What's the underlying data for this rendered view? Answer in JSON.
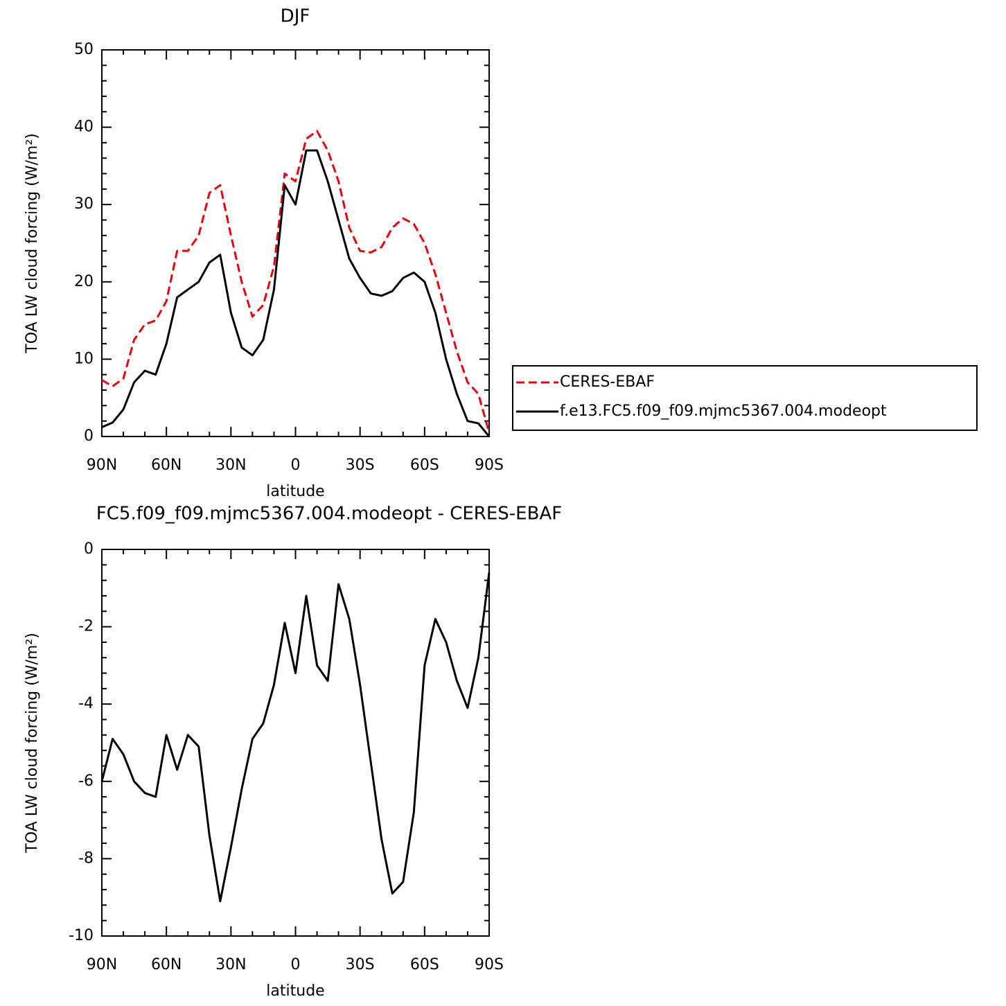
{
  "chart_data": [
    {
      "type": "line",
      "title": "DJF",
      "xlabel": "latitude",
      "ylabel": "TOA LW cloud forcing (W/m²)",
      "x": [
        90,
        85,
        80,
        75,
        70,
        65,
        60,
        55,
        50,
        45,
        40,
        35,
        30,
        25,
        20,
        15,
        10,
        5,
        0,
        -5,
        -10,
        -15,
        -20,
        -25,
        -30,
        -35,
        -40,
        -45,
        -50,
        -55,
        -60,
        -65,
        -70,
        -75,
        -80,
        -85,
        -90
      ],
      "xlim": [
        90,
        -90
      ],
      "xticks": [
        {
          "value": 90,
          "label": "90N"
        },
        {
          "value": 60,
          "label": "60N"
        },
        {
          "value": 30,
          "label": "30N"
        },
        0,
        {
          "value": -30,
          "label": "30S"
        },
        {
          "value": -60,
          "label": "60S"
        },
        {
          "value": -90,
          "label": "90S"
        }
      ],
      "ylim": [
        0,
        50
      ],
      "yticks": [
        0,
        10,
        20,
        30,
        40,
        50
      ],
      "grid": false,
      "legend": "right",
      "series": [
        {
          "name": "CERES-EBAF",
          "color": "#e8000b",
          "line_style": "dashed",
          "values": [
            7.3,
            6.5,
            7.5,
            12.5,
            14.5,
            15,
            17.5,
            24,
            24,
            26,
            31.5,
            32.5,
            26,
            20,
            15.5,
            17,
            22,
            34,
            33,
            38.5,
            39.5,
            37,
            33,
            27,
            24,
            23.8,
            24.5,
            27,
            28.2,
            27.5,
            25,
            21,
            16,
            11,
            7,
            5.5,
            0.5
          ]
        },
        {
          "name": "f.e13.FC5.f09_f09.mjmc5367.004.modeopt",
          "color": "#000000",
          "line_style": "solid",
          "values": [
            1.2,
            1.8,
            3.5,
            7,
            8.5,
            8,
            12,
            18,
            19,
            20,
            22.5,
            23.5,
            16,
            11.5,
            10.5,
            12.5,
            19,
            32.5,
            30,
            37,
            37,
            33,
            28,
            23,
            20.5,
            18.5,
            18.2,
            18.8,
            20.5,
            21.2,
            20,
            16,
            10,
            5.5,
            2,
            1.7,
            0
          ]
        }
      ]
    },
    {
      "type": "line",
      "title": "FC5.f09_f09.mjmc5367.004.modeopt - CERES-EBAF",
      "xlabel": "latitude",
      "ylabel": "TOA LW cloud forcing (W/m²)",
      "x": [
        90,
        85,
        80,
        75,
        70,
        65,
        60,
        55,
        50,
        45,
        40,
        35,
        30,
        25,
        20,
        15,
        10,
        5,
        0,
        -5,
        -10,
        -15,
        -20,
        -25,
        -30,
        -35,
        -40,
        -45,
        -50,
        -55,
        -60,
        -65,
        -70,
        -75,
        -80,
        -85,
        -90
      ],
      "xlim": [
        90,
        -90
      ],
      "xticks": [
        {
          "value": 90,
          "label": "90N"
        },
        {
          "value": 60,
          "label": "60N"
        },
        {
          "value": 30,
          "label": "30N"
        },
        0,
        {
          "value": -30,
          "label": "30S"
        },
        {
          "value": -60,
          "label": "60S"
        },
        {
          "value": -90,
          "label": "90S"
        }
      ],
      "ylim": [
        -10,
        0
      ],
      "yticks": [
        -10,
        -8,
        -6,
        -4,
        -2,
        0
      ],
      "grid": false,
      "series": [
        {
          "color": "#000000",
          "line_style": "solid",
          "values": [
            -6,
            -4.9,
            -5.3,
            -6,
            -6.3,
            -6.4,
            -4.8,
            -5.7,
            -4.8,
            -5.1,
            -7.4,
            -9.1,
            -7.7,
            -6.2,
            -4.9,
            -4.5,
            -3.5,
            -1.9,
            -3.2,
            -1.2,
            -3,
            -3.4,
            -0.9,
            -1.8,
            -3.5,
            -5.5,
            -7.5,
            -8.9,
            -8.6,
            -6.8,
            -3,
            -1.8,
            -2.4,
            -3.4,
            -4.1,
            -2.8,
            -0.6
          ]
        }
      ]
    }
  ]
}
